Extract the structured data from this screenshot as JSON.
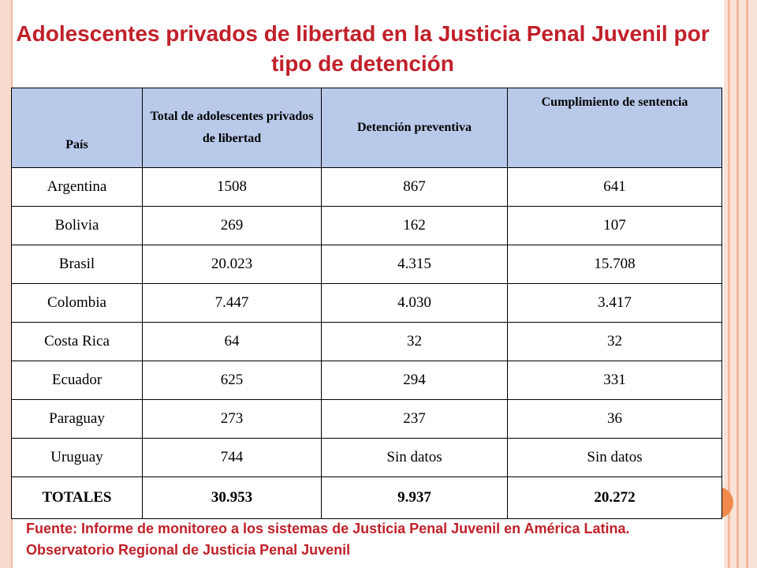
{
  "title": "Adolescentes privados de libertad en la Justicia Penal Juvenil por tipo de detención",
  "table": {
    "headers": [
      "País",
      "Total de adolescentes privados de libertad",
      "Detención preventiva",
      "Cumplimiento de sentencia"
    ],
    "rows": [
      [
        "Argentina",
        "1508",
        "867",
        "641"
      ],
      [
        "Bolivia",
        "269",
        "162",
        "107"
      ],
      [
        "Brasil",
        "20.023",
        "4.315",
        "15.708"
      ],
      [
        "Colombia",
        "7.447",
        "4.030",
        "3.417"
      ],
      [
        "Costa Rica",
        "64",
        "32",
        "32"
      ],
      [
        "Ecuador",
        "625",
        "294",
        "331"
      ],
      [
        "Paraguay",
        "273",
        "237",
        "36"
      ],
      [
        "Uruguay",
        "744",
        "Sin datos",
        "Sin datos"
      ]
    ],
    "totals": [
      "TOTALES",
      "30.953",
      "9.937",
      "20.272"
    ]
  },
  "source": {
    "line1": "Fuente: Informe de monitoreo a los sistemas de Justicia Penal Juvenil en América Latina.",
    "line2": "Observatorio Regional de Justicia Penal Juvenil"
  },
  "colors": {
    "title": "#c0202a",
    "header_bg": "#b8c9ea",
    "frame": "#f7dccd",
    "accent_dot": "#ef8a4c"
  }
}
